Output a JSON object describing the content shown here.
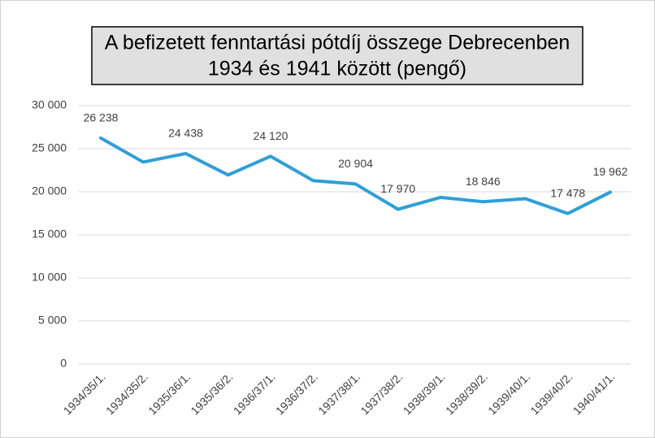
{
  "chart_data": {
    "type": "line",
    "title": [
      "A befizetett fenntartási pótdíj összege Debrecenben",
      "1934 és 1941 között (pengő)"
    ],
    "categories": [
      "1934/35/1.",
      "1934/35/2.",
      "1935/36/1.",
      "1935/36/2.",
      "1936/37/1.",
      "1936/37/2.",
      "1937/38/1.",
      "1937/38/2.",
      "1938/39/1.",
      "1938/39/2.",
      "1939/40/1.",
      "1939/40/2.",
      "1940/41/1."
    ],
    "series": [
      {
        "color": "#2e9fd9",
        "values": [
          26238,
          23450,
          24438,
          21950,
          24120,
          21300,
          20904,
          17970,
          19350,
          18846,
          19200,
          17478,
          19962
        ],
        "value_labels": [
          "26 238",
          null,
          "24 438",
          null,
          "24 120",
          null,
          "20 904",
          "17 970",
          null,
          "18 846",
          null,
          "17 478",
          "19 962"
        ]
      }
    ],
    "ylim": [
      0,
      30000
    ],
    "yticks": [
      0,
      {
        "value": 5000,
        "label": "5 000"
      },
      {
        "value": 10000,
        "label": "10 000"
      },
      {
        "value": 15000,
        "label": "15 000"
      },
      {
        "value": 20000,
        "label": "20 000"
      },
      {
        "value": 25000,
        "label": "25 000"
      },
      {
        "value": 30000,
        "label": "30 000"
      }
    ],
    "grid": true
  }
}
